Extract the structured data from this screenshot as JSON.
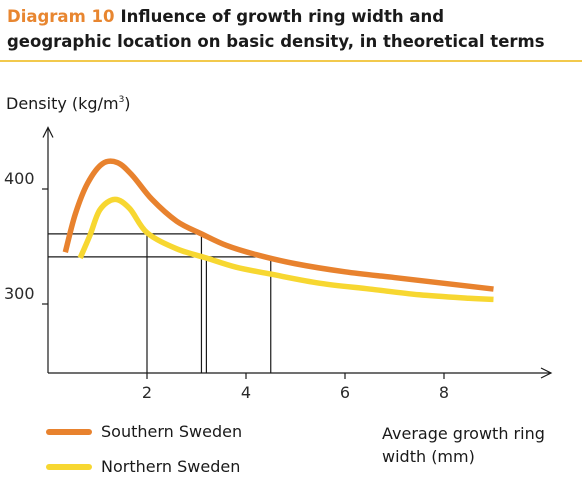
{
  "header": {
    "diagram_label": "Diagram 10",
    "title_line1": "Influence of growth ring width and",
    "title_line2": "geographic location on basic density, in theoretical terms"
  },
  "colors": {
    "southern": "#e8822e",
    "northern": "#f7d731",
    "accent_rule": "#f2c94c",
    "axis": "#1a1a1a"
  },
  "chart_data": {
    "type": "line",
    "title": "Influence of growth ring width and geographic location on basic density, in theoretical terms",
    "ylabel": "Density (kg/m",
    "ylabel_sup": "3",
    "ylabel_close": ")",
    "xlabel": "Average growth ring width (mm)",
    "xlim": [
      0,
      10
    ],
    "ylim": [
      240,
      450
    ],
    "xticks": [
      2,
      4,
      6,
      8
    ],
    "yticks": [
      300,
      400
    ],
    "xtick_labels": [
      "2",
      "4",
      "6",
      "8"
    ],
    "ytick_labels": [
      "300",
      "400"
    ],
    "grid": false,
    "legend": "bottom-left",
    "series": [
      {
        "name": "Southern Sweden",
        "color": "#e8822e",
        "points": [
          [
            0.35,
            345
          ],
          [
            0.55,
            378
          ],
          [
            0.8,
            405
          ],
          [
            1.1,
            422
          ],
          [
            1.4,
            423
          ],
          [
            1.7,
            412
          ],
          [
            2.1,
            391
          ],
          [
            2.6,
            372
          ],
          [
            3.1,
            361
          ],
          [
            3.6,
            351
          ],
          [
            4.2,
            343
          ],
          [
            5.0,
            335
          ],
          [
            6.0,
            328
          ],
          [
            7.0,
            323
          ],
          [
            8.0,
            318
          ],
          [
            9.0,
            313
          ]
        ]
      },
      {
        "name": "Northern Sweden",
        "color": "#f7d731",
        "points": [
          [
            0.65,
            340
          ],
          [
            0.85,
            360
          ],
          [
            1.05,
            382
          ],
          [
            1.35,
            391
          ],
          [
            1.65,
            383
          ],
          [
            2.0,
            362
          ],
          [
            2.6,
            348
          ],
          [
            3.2,
            340
          ],
          [
            3.8,
            332
          ],
          [
            4.5,
            326
          ],
          [
            5.5,
            318
          ],
          [
            6.5,
            313
          ],
          [
            7.5,
            308
          ],
          [
            8.5,
            305
          ],
          [
            9.0,
            304
          ]
        ]
      }
    ],
    "reference_lines": [
      {
        "y": 361,
        "x_points": [
          2.0,
          3.1
        ]
      },
      {
        "y": 341,
        "x_points": [
          3.2,
          4.5
        ]
      }
    ]
  }
}
